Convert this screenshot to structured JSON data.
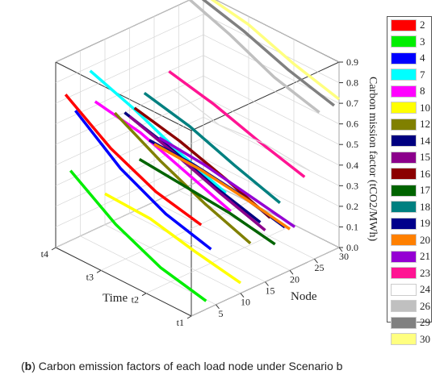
{
  "caption": {
    "prefix": "(",
    "letter": "b",
    "text": ") Carbon emission factors of each load node under Scenario b"
  },
  "chart_data": {
    "type": "line3d",
    "xlabel": "Node",
    "ylabel": "Time",
    "zlabel": "Carbon mission factor (tCO2/MWh)",
    "x_ticks": [
      "5",
      "10",
      "15",
      "20",
      "25",
      "30"
    ],
    "y_ticks": [
      "t1",
      "t2",
      "t3",
      "t4"
    ],
    "z_ticks": [
      "0.0",
      "0.1",
      "0.2",
      "0.3",
      "0.4",
      "0.5",
      "0.6",
      "0.7",
      "0.8",
      "0.9"
    ],
    "xlim": [
      0,
      30
    ],
    "ylim": [
      1,
      4
    ],
    "zlim": [
      0,
      0.9
    ],
    "grid": true,
    "legend_position": "right",
    "series": [
      {
        "name": "2",
        "color": "#ff0000",
        "x": 2,
        "values": [
          0.42,
          0.47,
          0.57,
          0.72
        ]
      },
      {
        "name": "3",
        "color": "#00ee00",
        "x": 3,
        "values": [
          0.04,
          0.09,
          0.19,
          0.34
        ]
      },
      {
        "name": "4",
        "color": "#0000ff",
        "x": 4,
        "values": [
          0.28,
          0.34,
          0.45,
          0.62
        ]
      },
      {
        "name": "7",
        "color": "#00ffff",
        "x": 7,
        "values": [
          0.52,
          0.6,
          0.7,
          0.78
        ]
      },
      {
        "name": "8",
        "color": "#ff00ff",
        "x": 8,
        "values": [
          0.42,
          0.5,
          0.58,
          0.62
        ]
      },
      {
        "name": "10",
        "color": "#ffff00",
        "x": 10,
        "values": [
          0.05,
          0.09,
          0.14,
          0.15
        ]
      },
      {
        "name": "12",
        "color": "#808000",
        "x": 12,
        "values": [
          0.22,
          0.3,
          0.4,
          0.52
        ]
      },
      {
        "name": "14",
        "color": "#000080",
        "x": 14,
        "values": [
          0.3,
          0.36,
          0.44,
          0.5
        ]
      },
      {
        "name": "15",
        "color": "#8b008b",
        "x": 15,
        "values": [
          0.25,
          0.32,
          0.4,
          0.47
        ]
      },
      {
        "name": "16",
        "color": "#8b0000",
        "x": 16,
        "values": [
          0.3,
          0.38,
          0.45,
          0.5
        ]
      },
      {
        "name": "17",
        "color": "#006400",
        "x": 17,
        "values": [
          0.16,
          0.2,
          0.22,
          0.24
        ]
      },
      {
        "name": "18",
        "color": "#008080",
        "x": 18,
        "values": [
          0.35,
          0.42,
          0.5,
          0.55
        ]
      },
      {
        "name": "19",
        "color": "#00008b",
        "x": 19,
        "values": [
          0.22,
          0.27,
          0.3,
          0.31
        ]
      },
      {
        "name": "20",
        "color": "#ff8000",
        "x": 20,
        "values": [
          0.2,
          0.24,
          0.27,
          0.28
        ]
      },
      {
        "name": "21",
        "color": "#9400d3",
        "x": 21,
        "values": [
          0.2,
          0.24,
          0.28,
          0.3
        ]
      },
      {
        "name": "23",
        "color": "#ff1493",
        "x": 23,
        "values": [
          0.42,
          0.48,
          0.55,
          0.6
        ]
      },
      {
        "name": "24",
        "color": "#ffffff",
        "x": 24,
        "values": [
          0.44,
          0.46,
          0.44,
          0.5
        ]
      },
      {
        "name": "26",
        "color": "#c0c0c0",
        "x": 26,
        "values": [
          0.7,
          0.76,
          0.86,
          0.94
        ]
      },
      {
        "name": "29",
        "color": "#808080",
        "x": 29,
        "values": [
          0.7,
          0.76,
          0.84,
          0.9
        ]
      },
      {
        "name": "30",
        "color": "#ffff80",
        "x": 30,
        "values": [
          0.72,
          0.78,
          0.86,
          0.9
        ]
      }
    ]
  }
}
